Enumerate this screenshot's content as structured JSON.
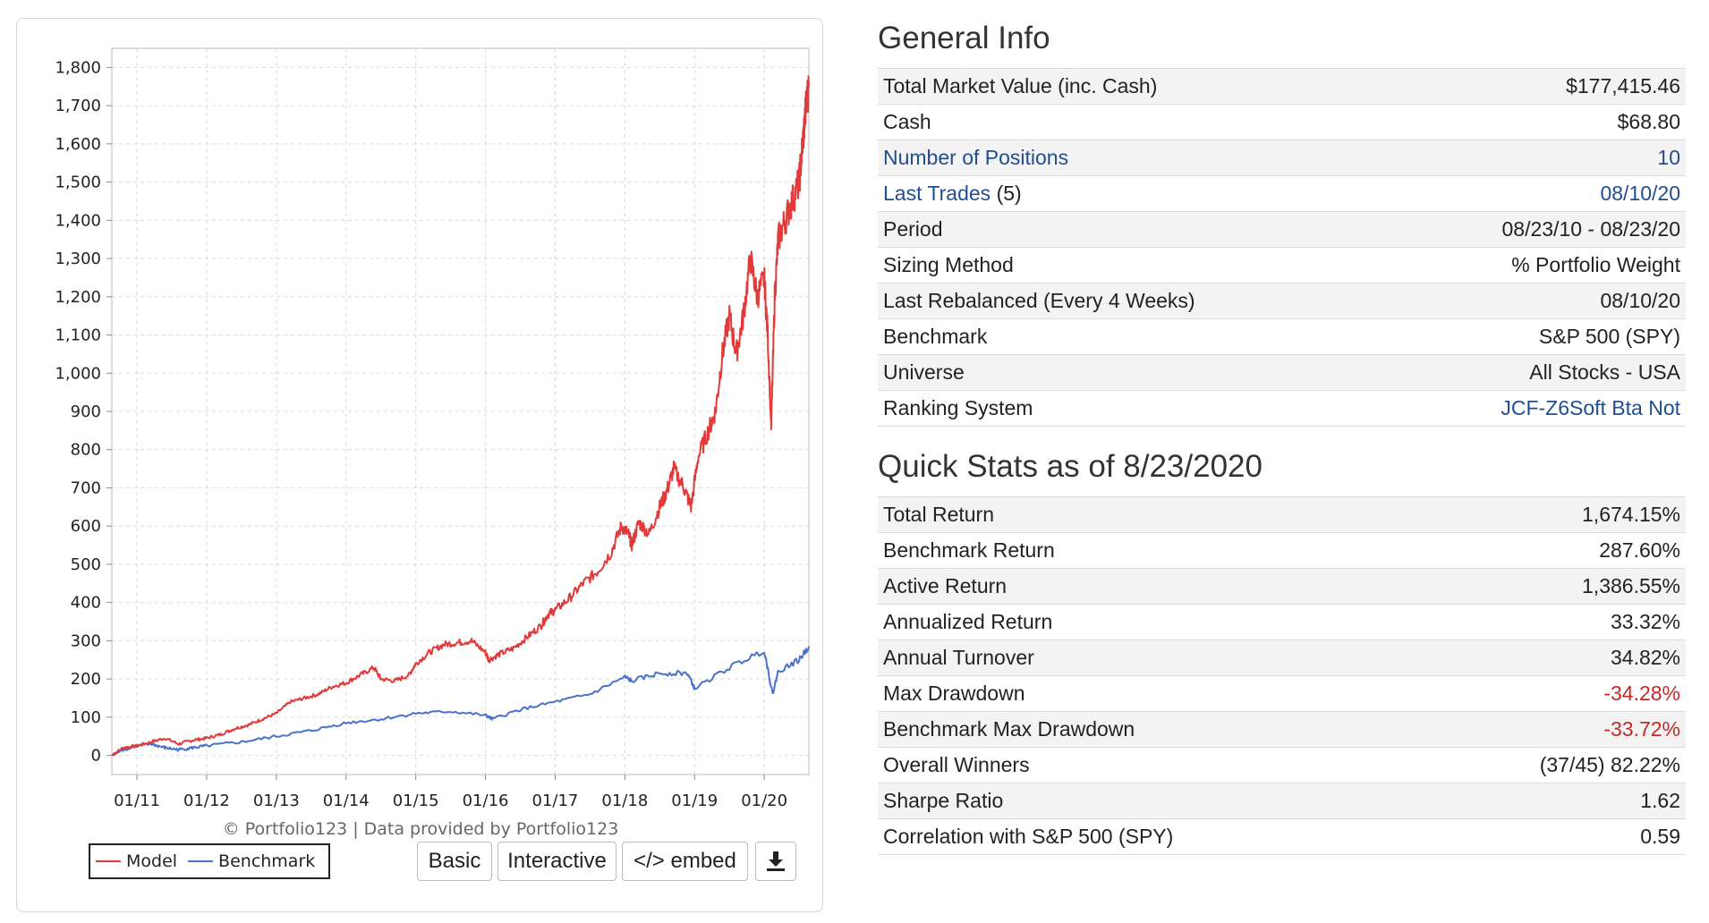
{
  "chart": {
    "credit": "© Portfolio123 | Data provided by Portfolio123",
    "legend": {
      "model_label": "Model",
      "benchmark_label": "Benchmark"
    },
    "colors": {
      "model": "#e03a3a",
      "benchmark": "#4a72c9"
    },
    "buttons": {
      "basic": "Basic",
      "interactive": "Interactive",
      "embed": "</> embed",
      "download_icon": "download-icon"
    }
  },
  "chart_data": {
    "type": "line",
    "xlabel": "",
    "ylabel": "",
    "xlim": [
      2010.64,
      2020.64
    ],
    "ylim": [
      -50,
      1850
    ],
    "grid": true,
    "legend_position": "bottom-left",
    "y_ticks": [
      "1,800",
      "1,700",
      "1,600",
      "1,500",
      "1,400",
      "1,300",
      "1,200",
      "1,100",
      "1,000",
      "900",
      "800",
      "700",
      "600",
      "500",
      "400",
      "300",
      "200",
      "100",
      "0"
    ],
    "y_tick_values": [
      1800,
      1700,
      1600,
      1500,
      1400,
      1300,
      1200,
      1100,
      1000,
      900,
      800,
      700,
      600,
      500,
      400,
      300,
      200,
      100,
      0
    ],
    "x_ticks": [
      "01/11",
      "01/12",
      "01/13",
      "01/14",
      "01/15",
      "01/16",
      "01/17",
      "01/18",
      "01/19",
      "01/20"
    ],
    "x_tick_values": [
      2011,
      2012,
      2013,
      2014,
      2015,
      2016,
      2017,
      2018,
      2019,
      2020
    ],
    "series": [
      {
        "name": "Model",
        "x": [
          2010.64,
          2010.8,
          2011.0,
          2011.2,
          2011.4,
          2011.6,
          2011.8,
          2012.0,
          2012.2,
          2012.4,
          2012.6,
          2012.8,
          2013.0,
          2013.2,
          2013.4,
          2013.6,
          2013.8,
          2014.0,
          2014.2,
          2014.4,
          2014.5,
          2014.7,
          2014.9,
          2015.0,
          2015.2,
          2015.4,
          2015.6,
          2015.8,
          2016.0,
          2016.05,
          2016.2,
          2016.4,
          2016.6,
          2016.8,
          2016.9,
          2017.0,
          2017.2,
          2017.4,
          2017.6,
          2017.8,
          2017.95,
          2018.05,
          2018.1,
          2018.2,
          2018.35,
          2018.5,
          2018.6,
          2018.7,
          2018.85,
          2018.95,
          2019.05,
          2019.2,
          2019.3,
          2019.4,
          2019.5,
          2019.6,
          2019.7,
          2019.8,
          2019.9,
          2020.0,
          2020.05,
          2020.1,
          2020.15,
          2020.2,
          2020.3,
          2020.4,
          2020.5,
          2020.55,
          2020.6,
          2020.64
        ],
        "y": [
          0,
          20,
          25,
          35,
          45,
          30,
          40,
          45,
          55,
          70,
          80,
          95,
          110,
          140,
          150,
          160,
          180,
          190,
          210,
          230,
          200,
          195,
          210,
          240,
          270,
          290,
          295,
          300,
          270,
          250,
          265,
          280,
          310,
          340,
          370,
          380,
          410,
          450,
          480,
          530,
          600,
          580,
          550,
          610,
          580,
          650,
          690,
          750,
          700,
          650,
          780,
          850,
          900,
          1050,
          1150,
          1050,
          1150,
          1300,
          1200,
          1250,
          1100,
          860,
          1200,
          1350,
          1400,
          1450,
          1500,
          1600,
          1700,
          1750
        ]
      },
      {
        "name": "Benchmark",
        "x": [
          2010.64,
          2010.8,
          2011.0,
          2011.2,
          2011.4,
          2011.6,
          2011.8,
          2012.0,
          2012.5,
          2013.0,
          2013.5,
          2014.0,
          2014.5,
          2015.0,
          2015.5,
          2016.0,
          2016.1,
          2016.5,
          2017.0,
          2017.5,
          2018.0,
          2018.1,
          2018.5,
          2018.9,
          2019.0,
          2019.5,
          2020.0,
          2020.12,
          2020.2,
          2020.5,
          2020.64
        ],
        "y": [
          0,
          15,
          25,
          30,
          20,
          15,
          20,
          25,
          35,
          50,
          65,
          85,
          95,
          110,
          115,
          105,
          95,
          120,
          140,
          160,
          205,
          195,
          215,
          215,
          175,
          230,
          275,
          160,
          220,
          250,
          285
        ]
      }
    ]
  },
  "general_info": {
    "title": "General Info",
    "rows": [
      {
        "label": "Total Market Value (inc. Cash)",
        "value": "$177,415.46"
      },
      {
        "label": "Cash",
        "value": "$68.80"
      },
      {
        "label": "Number of Positions",
        "value": "10"
      },
      {
        "label": "Last Trades",
        "label_suffix": "(5)",
        "value": "08/10/20"
      },
      {
        "label": "Period",
        "value": "08/23/10 - 08/23/20"
      },
      {
        "label": "Sizing Method",
        "value": "% Portfolio Weight"
      },
      {
        "label": "Last Rebalanced (Every 4 Weeks)",
        "value": "08/10/20"
      },
      {
        "label": "Benchmark",
        "value": "S&P 500 (SPY)"
      },
      {
        "label": "Universe",
        "value": "All Stocks - USA"
      },
      {
        "label": "Ranking System",
        "value": "JCF-Z6Soft Bta Not"
      }
    ]
  },
  "quick_stats": {
    "title": "Quick Stats as of 8/23/2020",
    "rows": [
      {
        "label": "Total Return",
        "value": "1,674.15%"
      },
      {
        "label": "Benchmark Return",
        "value": "287.60%"
      },
      {
        "label": "Active Return",
        "value": "1,386.55%"
      },
      {
        "label": "Annualized Return",
        "value": "33.32%"
      },
      {
        "label": "Annual Turnover",
        "value": "34.82%"
      },
      {
        "label": "Max Drawdown",
        "value": "-34.28%"
      },
      {
        "label": "Benchmark Max Drawdown",
        "value": "-33.72%"
      },
      {
        "label": "Overall Winners",
        "value": "(37/45) 82.22%"
      },
      {
        "label": "Sharpe Ratio",
        "value": "1.62"
      },
      {
        "label": "Correlation with S&P 500 (SPY)",
        "value": "0.59"
      }
    ]
  }
}
